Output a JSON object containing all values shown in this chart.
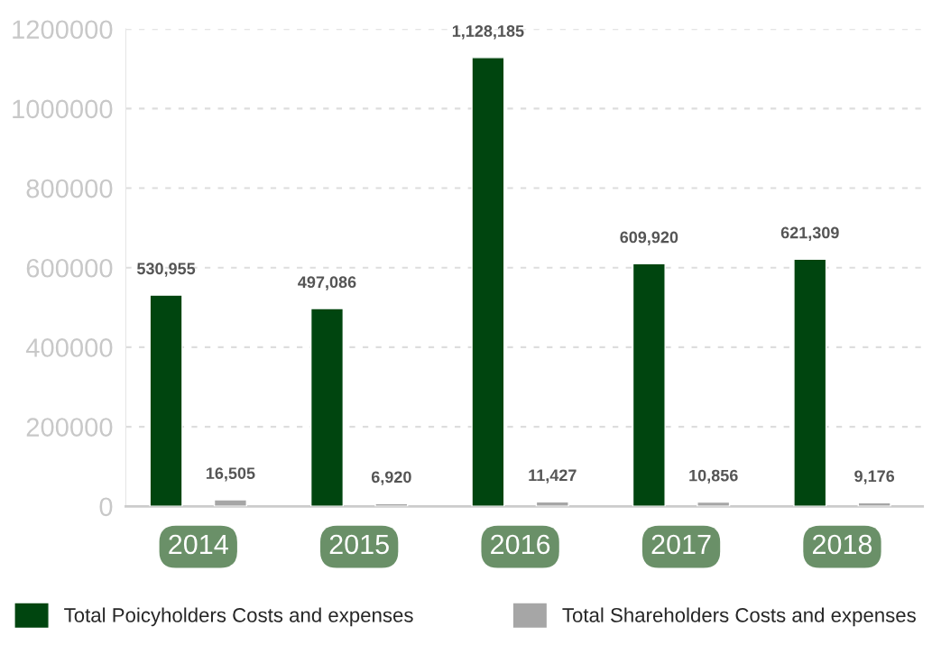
{
  "chart_data": {
    "type": "bar",
    "categories": [
      "2014",
      "2015",
      "2016",
      "2017",
      "2018"
    ],
    "series": [
      {
        "name": "Total Poicyholders Costs and expenses",
        "color": "#00450f",
        "values": [
          530955,
          497086,
          1128185,
          609920,
          621309
        ],
        "value_labels": [
          "530,955",
          "497,086",
          "1,128,185",
          "609,920",
          "621,309"
        ]
      },
      {
        "name": "Total Shareholders Costs and expenses",
        "color": "#a6a6a6",
        "values": [
          16505,
          6920,
          11427,
          10856,
          9176
        ],
        "value_labels": [
          "16,505",
          "6,920",
          "11,427",
          "10,856",
          "9,176"
        ]
      }
    ],
    "ylim": [
      0,
      1200000
    ],
    "yticks": [
      0,
      200000,
      400000,
      600000,
      800000,
      1000000,
      1200000
    ],
    "grid": "y",
    "legend": "bottom"
  }
}
